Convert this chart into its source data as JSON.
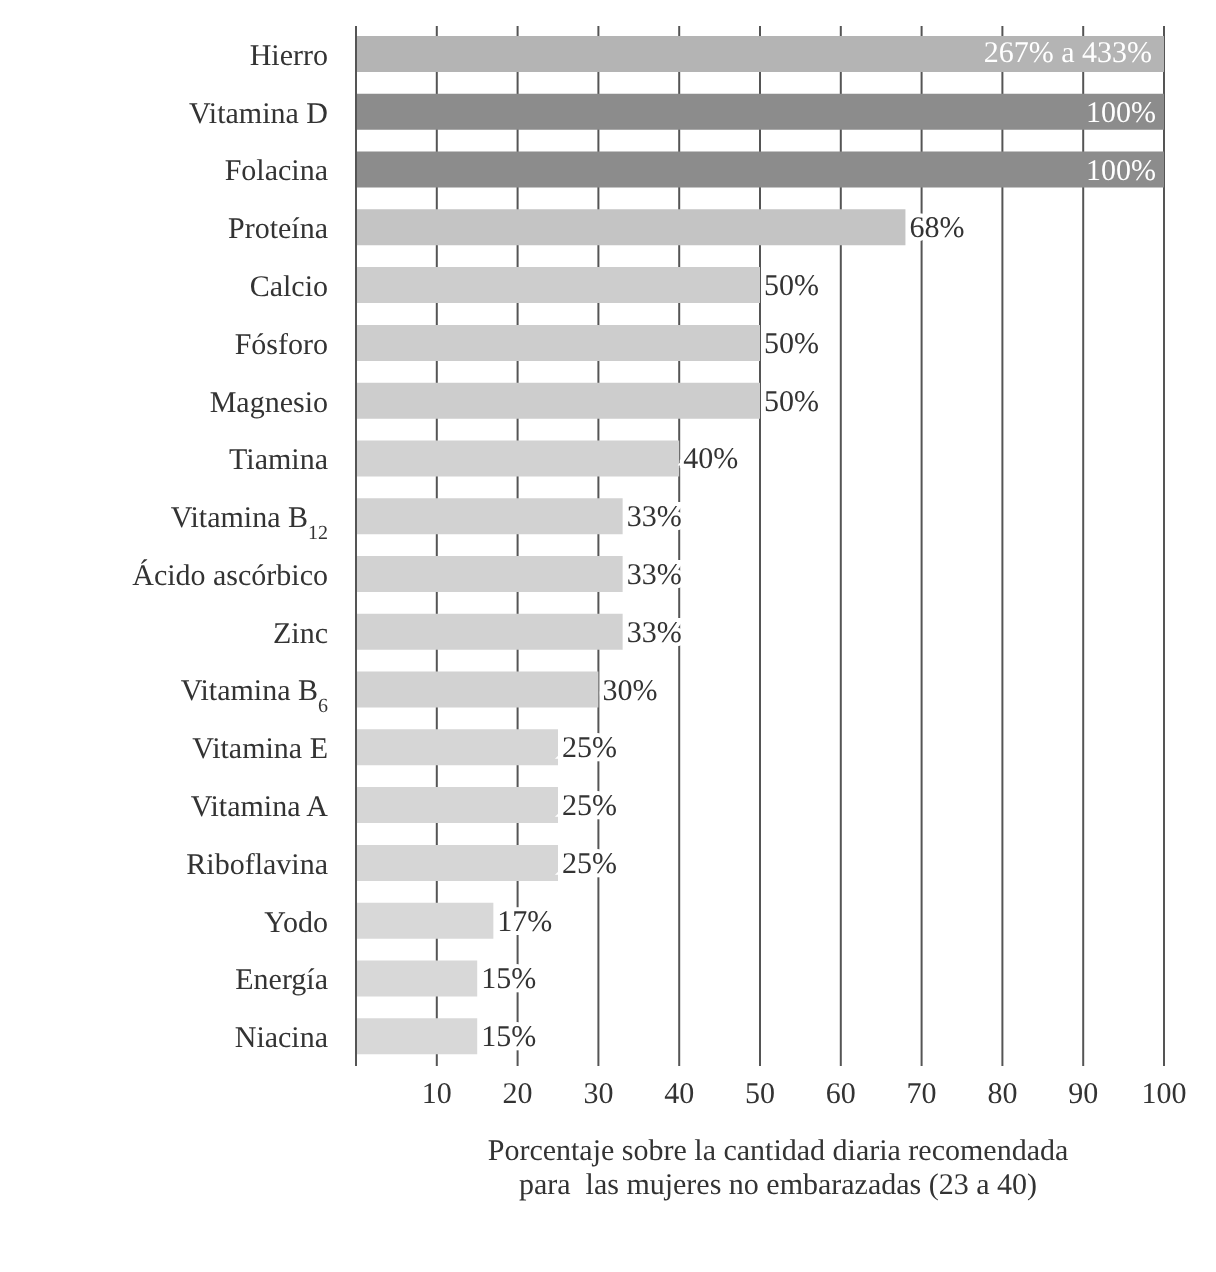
{
  "chart_data": {
    "type": "bar",
    "orientation": "horizontal",
    "xlabel": "Porcentaje sobre la cantidad diaria recomendada\npara  las mujeres no embarazadas (23 a 40)",
    "categories": [
      "Hierro",
      "Vitamina D",
      "Folacina",
      "Proteína",
      "Calcio",
      "Fósforo",
      "Magnesio",
      "Tiamina",
      "Vitamina B$_{12}$",
      "Ácido ascórbico",
      "Zinc",
      "Vitamina B$_{6}$",
      "Vitamina E",
      "Vitamina A",
      "Riboflavina",
      "Yodo",
      "Energía",
      "Niacina"
    ],
    "values": [
      100,
      100,
      100,
      68,
      50,
      50,
      50,
      40,
      33,
      33,
      33,
      30,
      25,
      25,
      25,
      17,
      15,
      15
    ],
    "value_labels": [
      null,
      "100%",
      "100%",
      "68%",
      "50%",
      "50%",
      "50%",
      "40%",
      "33%",
      "33%",
      "33%",
      "30%",
      "25%",
      "25%",
      "25%",
      "17%",
      "15%",
      "15%"
    ],
    "colors": [
      "#b4b4b4",
      "#8c8c8c",
      "#8c8c8c",
      "#c4c4c4",
      "#cdcdcd",
      "#cdcdcd",
      "#cdcdcd",
      "#d2d2d2",
      "#d2d2d2",
      "#d2d2d2",
      "#d2d2d2",
      "#d2d2d2",
      "#d6d6d6",
      "#d6d6d6",
      "#d6d6d6",
      "#d8d8d8",
      "#d8d8d8",
      "#d8d8d8"
    ],
    "annotations": [
      {
        "text": "267% a 433%",
        "x": 100,
        "y": "Hierro"
      }
    ],
    "xlim": [
      0,
      100
    ],
    "xticks": [
      10,
      20,
      30,
      40,
      50,
      60,
      70,
      80,
      90,
      100
    ],
    "grid": "x"
  }
}
